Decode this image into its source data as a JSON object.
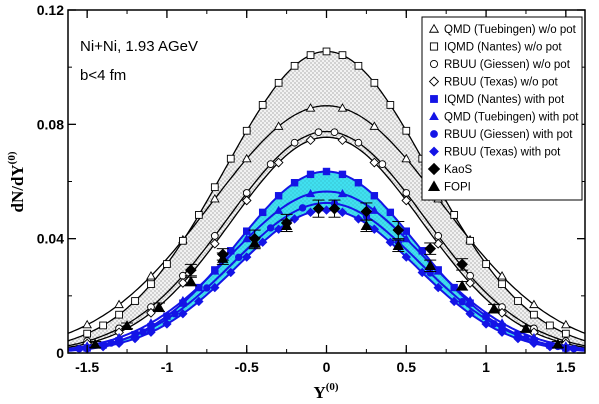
{
  "chart_data": {
    "type": "line",
    "xlabel": "Y",
    "xlabel_sup": "(0)",
    "ylabel": "dN/dY",
    "ylabel_sup": "(0)",
    "xlim": [
      -1.62,
      1.62
    ],
    "ylim": [
      0,
      0.12
    ],
    "xticks": [
      -1.5,
      -1,
      -0.5,
      0,
      0.5,
      1,
      1.5
    ],
    "xtick_labels": [
      "-1.5",
      "-1",
      "-0.5",
      "0",
      "0.5",
      "1",
      "1.5"
    ],
    "yticks": [
      0,
      0.04,
      0.08,
      0.12
    ],
    "ytick_labels": [
      "0",
      "0.04",
      "0.08",
      "0.12"
    ],
    "annotations": [
      "Ni+Ni, 1.93 AGeV",
      "b<4 fm"
    ],
    "legend_position": "top-right",
    "bands": [
      {
        "upper": "IQMD (Nantes) w/o pot",
        "lower": "RBUU (Texas) w/o pot",
        "fill": "dotted-gray"
      },
      {
        "upper": "IQMD (Nantes) with pot",
        "lower": "RBUU (Texas) with pot",
        "fill": "#40e0f0"
      }
    ],
    "series": [
      {
        "name": "QMD (Tuebingen) w/o pot",
        "marker": "triangle-open",
        "color": "#000000",
        "sigma": 0.72,
        "amp": 0.0865,
        "x": [
          -1.5,
          -1.3,
          -1.1,
          -0.9,
          -0.7,
          -0.5,
          -0.3,
          -0.1,
          0.1,
          0.3,
          0.5,
          0.7,
          0.9,
          1.1,
          1.3,
          1.5
        ]
      },
      {
        "name": "IQMD (Nantes) w/o pot",
        "marker": "square-open",
        "color": "#000000",
        "sigma": 0.64,
        "amp": 0.1055,
        "x": [
          -1.5,
          -1.4,
          -1.3,
          -1.2,
          -1.1,
          -1.0,
          -0.9,
          -0.8,
          -0.7,
          -0.6,
          -0.5,
          -0.4,
          -0.3,
          -0.2,
          -0.1,
          0.0,
          0.1,
          0.2,
          0.3,
          0.4,
          0.5,
          0.6,
          0.7,
          0.8,
          0.9,
          1.0,
          1.1,
          1.2,
          1.3,
          1.4,
          1.5
        ]
      },
      {
        "name": "RBUU (Giessen) w/o pot",
        "marker": "circle-open",
        "color": "#000000",
        "sigma": 0.62,
        "amp": 0.0775,
        "x": [
          -1.5,
          -1.3,
          -1.1,
          -0.9,
          -0.7,
          -0.5,
          -0.35,
          -0.2,
          -0.05,
          0.05,
          0.2,
          0.35,
          0.5,
          0.7,
          0.9,
          1.1,
          1.3,
          1.5
        ]
      },
      {
        "name": "RBUU (Texas) w/o pot",
        "marker": "diamond-open",
        "color": "#000000",
        "sigma": 0.6,
        "amp": 0.0755,
        "x": [
          -1.5,
          -1.3,
          -1.1,
          -0.9,
          -0.7,
          -0.5,
          -0.3,
          -0.1,
          0.1,
          0.3,
          0.5,
          0.7,
          0.9,
          1.1,
          1.3,
          1.5
        ]
      },
      {
        "name": "IQMD (Nantes) with pot",
        "marker": "square-filled",
        "color": "#1414e6",
        "sigma": 0.56,
        "amp": 0.0635,
        "x": [
          -1.5,
          -1.4,
          -1.3,
          -1.2,
          -1.1,
          -1.0,
          -0.9,
          -0.8,
          -0.7,
          -0.6,
          -0.5,
          -0.4,
          -0.3,
          -0.2,
          -0.1,
          0.0,
          0.1,
          0.2,
          0.3,
          0.4,
          0.5,
          0.6,
          0.7,
          0.8,
          0.9,
          1.0,
          1.1,
          1.2,
          1.3,
          1.4,
          1.5
        ]
      },
      {
        "name": "QMD (Tuebingen) with pot",
        "marker": "triangle-filled",
        "color": "#1414e6",
        "sigma": 0.6,
        "amp": 0.0565,
        "x": [
          -1.5,
          -1.3,
          -1.1,
          -0.9,
          -0.7,
          -0.5,
          -0.3,
          -0.1,
          0.1,
          0.3,
          0.5,
          0.7,
          0.9,
          1.1,
          1.3,
          1.5
        ]
      },
      {
        "name": "RBUU (Giessen) with pot",
        "marker": "circle-filled",
        "color": "#1414e6",
        "sigma": 0.58,
        "amp": 0.0525,
        "x": [
          -1.55,
          -1.35,
          -1.15,
          -0.95,
          -0.75,
          -0.55,
          -0.35,
          -0.15,
          0.05,
          0.25,
          0.45,
          0.65,
          0.85,
          1.05,
          1.25,
          1.45,
          1.55
        ]
      },
      {
        "name": "RBUU (Texas) with pot",
        "marker": "diamond-filled",
        "color": "#1414e6",
        "sigma": 0.56,
        "amp": 0.05,
        "x": [
          -1.5,
          -1.4,
          -1.3,
          -1.2,
          -1.1,
          -1.0,
          -0.9,
          -0.8,
          -0.7,
          -0.6,
          -0.5,
          -0.4,
          -0.3,
          -0.2,
          -0.1,
          0.0,
          0.1,
          0.2,
          0.3,
          0.4,
          0.5,
          0.6,
          0.7,
          0.8,
          0.9,
          1.0,
          1.1,
          1.2,
          1.3,
          1.4,
          1.5
        ]
      },
      {
        "name": "KaoS",
        "marker": "diamond-black",
        "color": "#000000",
        "points": [
          {
            "x": -0.85,
            "y": 0.029,
            "err": 0.002
          },
          {
            "x": -0.65,
            "y": 0.0345,
            "err": 0.002
          },
          {
            "x": -0.45,
            "y": 0.04,
            "err": 0.003
          },
          {
            "x": -0.25,
            "y": 0.0455,
            "err": 0.003
          },
          {
            "x": -0.05,
            "y": 0.0505,
            "err": 0.003
          },
          {
            "x": 0.05,
            "y": 0.0505,
            "err": 0.003
          },
          {
            "x": 0.25,
            "y": 0.0495,
            "err": 0.003
          },
          {
            "x": 0.45,
            "y": 0.043,
            "err": 0.003
          },
          {
            "x": 0.65,
            "y": 0.0365,
            "err": 0.002
          },
          {
            "x": 0.85,
            "y": 0.031,
            "err": 0.002
          }
        ]
      },
      {
        "name": "FOPI",
        "marker": "triangle-black",
        "color": "#000000",
        "points": [
          {
            "x": -1.45,
            "y": 0.003,
            "err": 0.001
          },
          {
            "x": -1.25,
            "y": 0.0095,
            "err": 0.001
          },
          {
            "x": -1.05,
            "y": 0.016,
            "err": 0.0015
          },
          {
            "x": -0.85,
            "y": 0.025,
            "err": 0.0015
          },
          {
            "x": -0.65,
            "y": 0.033,
            "err": 0.002
          },
          {
            "x": -0.45,
            "y": 0.0385,
            "err": 0.002
          },
          {
            "x": -0.25,
            "y": 0.0445,
            "err": 0.002
          },
          {
            "x": 0.25,
            "y": 0.0445,
            "err": 0.002
          },
          {
            "x": 0.45,
            "y": 0.0375,
            "err": 0.002
          },
          {
            "x": 0.65,
            "y": 0.0305,
            "err": 0.002
          },
          {
            "x": 0.85,
            "y": 0.0235,
            "err": 0.0015
          },
          {
            "x": 1.05,
            "y": 0.0155,
            "err": 0.0015
          },
          {
            "x": 1.25,
            "y": 0.0085,
            "err": 0.001
          },
          {
            "x": 1.45,
            "y": 0.003,
            "err": 0.001
          }
        ]
      }
    ]
  }
}
